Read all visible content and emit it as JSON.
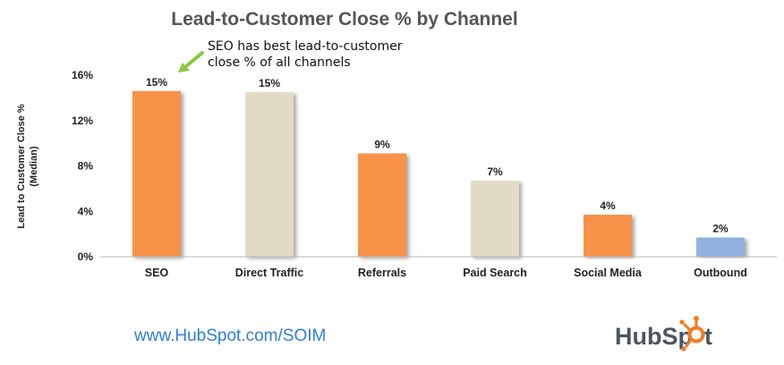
{
  "chart_data": {
    "type": "bar",
    "title": "Lead-to-Customer Close % by Channel",
    "ylabel_line1": "Lead to Customer Close %",
    "ylabel_line2": "(Median)",
    "xlabel": "",
    "categories": [
      "SEO",
      "Direct Traffic",
      "Referrals",
      "Paid Search",
      "Social Media",
      "Outbound"
    ],
    "values": [
      14.6,
      14.5,
      9.1,
      6.7,
      3.7,
      1.7
    ],
    "data_labels": [
      "15%",
      "15%",
      "9%",
      "7%",
      "4%",
      "2%"
    ],
    "bar_colors": [
      "#f7934a",
      "#e2dcc6",
      "#f7934a",
      "#e2dcc6",
      "#f7934a",
      "#8fb1de"
    ],
    "ylim": [
      0,
      16
    ],
    "yticks": [
      0,
      4,
      8,
      12,
      16
    ],
    "ytick_labels": [
      "0%",
      "4%",
      "8%",
      "12%",
      "16%"
    ],
    "grid": false,
    "legend": "none",
    "annotation": {
      "lines": [
        "SEO has best lead-to-customer",
        "close % of all channels"
      ],
      "arrow_color": "#8dc63f",
      "target_category": "SEO"
    }
  },
  "footer": {
    "url": "www.HubSpot.com/SOIM",
    "brand_left": "HubSp",
    "brand_right": "t",
    "brand_sprocket_color": "#f47b20"
  }
}
